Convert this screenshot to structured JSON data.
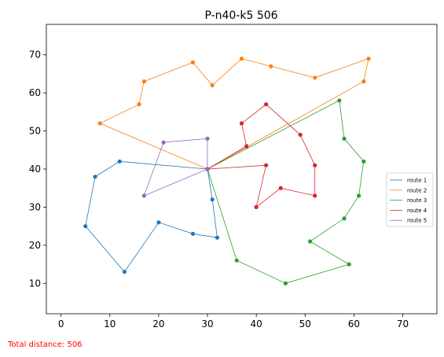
{
  "chart_data": {
    "type": "line",
    "title": "P-n40-k5 506",
    "xlabel": "",
    "ylabel": "",
    "xlim": [
      -3,
      77
    ],
    "ylim": [
      2,
      78
    ],
    "xticks": [
      0,
      10,
      20,
      30,
      40,
      50,
      60,
      70
    ],
    "yticks": [
      10,
      20,
      30,
      40,
      50,
      60,
      70
    ],
    "grid": false,
    "legend_position": "right",
    "depot": [
      30,
      40
    ],
    "series": [
      {
        "name": "route 1",
        "color": "#1f77b4",
        "points": [
          [
            30,
            40
          ],
          [
            12,
            42
          ],
          [
            7,
            38
          ],
          [
            5,
            25
          ],
          [
            13,
            13
          ],
          [
            20,
            26
          ],
          [
            27,
            23
          ],
          [
            32,
            22
          ],
          [
            31,
            32
          ],
          [
            30,
            40
          ]
        ]
      },
      {
        "name": "route 2",
        "color": "#ff7f0e",
        "points": [
          [
            30,
            40
          ],
          [
            8,
            52
          ],
          [
            16,
            57
          ],
          [
            17,
            63
          ],
          [
            27,
            68
          ],
          [
            31,
            62
          ],
          [
            37,
            69
          ],
          [
            43,
            67
          ],
          [
            52,
            64
          ],
          [
            63,
            69
          ],
          [
            62,
            63
          ],
          [
            30,
            40
          ]
        ]
      },
      {
        "name": "route 3",
        "color": "#2ca02c",
        "points": [
          [
            30,
            40
          ],
          [
            57,
            58
          ],
          [
            58,
            48
          ],
          [
            62,
            42
          ],
          [
            61,
            33
          ],
          [
            58,
            27
          ],
          [
            51,
            21
          ],
          [
            59,
            15
          ],
          [
            46,
            10
          ],
          [
            36,
            16
          ],
          [
            30,
            40
          ]
        ]
      },
      {
        "name": "route 4",
        "color": "#d62728",
        "points": [
          [
            30,
            40
          ],
          [
            38,
            46
          ],
          [
            37,
            52
          ],
          [
            42,
            57
          ],
          [
            49,
            49
          ],
          [
            52,
            41
          ],
          [
            52,
            33
          ],
          [
            45,
            35
          ],
          [
            40,
            30
          ],
          [
            42,
            41
          ],
          [
            30,
            40
          ]
        ]
      },
      {
        "name": "route 5",
        "color": "#9467bd",
        "points": [
          [
            30,
            40
          ],
          [
            30,
            48
          ],
          [
            21,
            47
          ],
          [
            17,
            33
          ],
          [
            30,
            40
          ]
        ]
      }
    ]
  },
  "footer": {
    "total_distance": "Total distance: 506"
  }
}
